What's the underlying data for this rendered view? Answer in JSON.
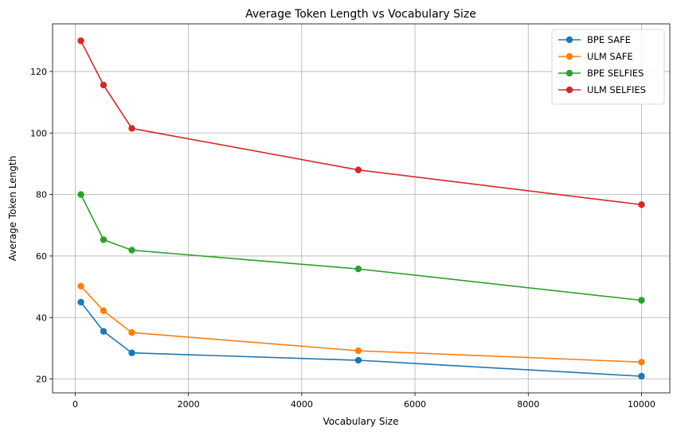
{
  "chart_data": {
    "type": "line",
    "title": "Average Token Length vs Vocabulary Size",
    "xlabel": "Vocabulary Size",
    "ylabel": "Average Token Length",
    "x": [
      100,
      500,
      1000,
      5000,
      10000
    ],
    "xlim": [
      -400,
      10500
    ],
    "ylim": [
      15.5,
      135.5
    ],
    "xticks": [
      0,
      2000,
      4000,
      6000,
      8000,
      10000
    ],
    "yticks": [
      20,
      40,
      60,
      80,
      100,
      120
    ],
    "grid": true,
    "legend_position": "top-right",
    "marker": "circle",
    "series": [
      {
        "name": "BPE SAFE",
        "color": "#1f77b4",
        "values": [
          45.0,
          35.5,
          28.5,
          26.1,
          20.9
        ]
      },
      {
        "name": "ULM SAFE",
        "color": "#ff7f0e",
        "values": [
          50.2,
          42.2,
          35.1,
          29.2,
          25.5
        ]
      },
      {
        "name": "BPE SELFIES",
        "color": "#2ca02c",
        "values": [
          80.0,
          65.3,
          61.9,
          55.8,
          45.6
        ]
      },
      {
        "name": "ULM SELFIES",
        "color": "#d62728",
        "values": [
          130.0,
          115.6,
          101.5,
          88.0,
          76.7
        ]
      }
    ]
  }
}
